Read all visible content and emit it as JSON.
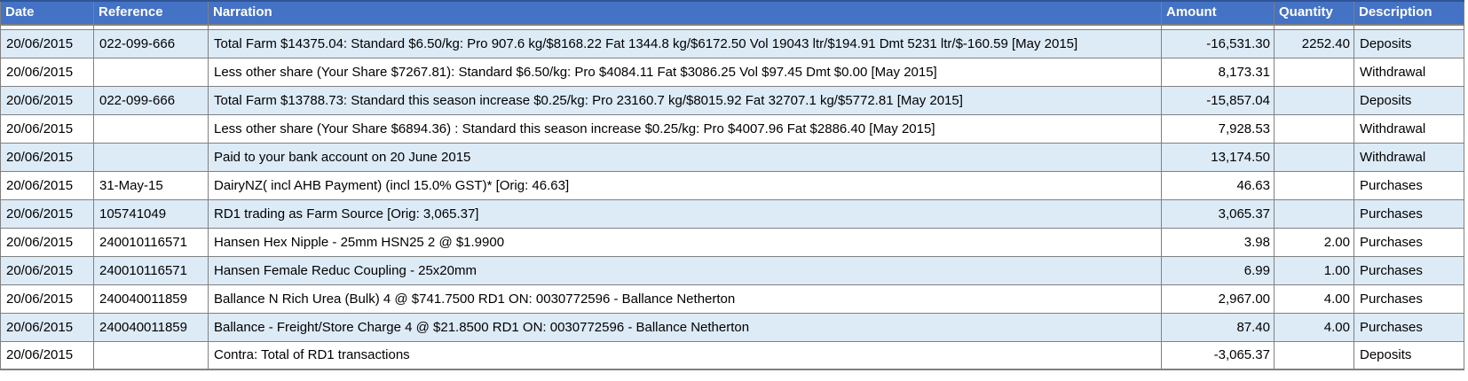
{
  "colors": {
    "header_bg": "#4472C4",
    "header_text": "#FFFFFF",
    "row_band_bg": "#DDEBF7",
    "row_bg": "#FFFFFF",
    "grid_border": "#808080"
  },
  "table": {
    "columns": [
      {
        "key": "date",
        "label": "Date"
      },
      {
        "key": "reference",
        "label": "Reference"
      },
      {
        "key": "narration",
        "label": "Narration"
      },
      {
        "key": "amount",
        "label": "Amount"
      },
      {
        "key": "quantity",
        "label": "Quantity"
      },
      {
        "key": "description",
        "label": "Description"
      }
    ],
    "rows": [
      {
        "date": "20/06/2015",
        "reference": "022-099-666",
        "narration": "Total Farm $14375.04: Standard  $6.50/kg: Pro 907.6 kg/$8168.22 Fat 1344.8 kg/$6172.50 Vol 19043 ltr/$194.91 Dmt 5231 ltr/$-160.59 [May 2015]",
        "amount": "-16,531.30",
        "quantity": "2252.40",
        "description": "Deposits"
      },
      {
        "date": "20/06/2015",
        "reference": "",
        "narration": "Less other share (Your Share $7267.81): Standard  $6.50/kg: Pro $4084.11 Fat $3086.25 Vol $97.45 Dmt $0.00 [May 2015]",
        "amount": "8,173.31",
        "quantity": "",
        "description": "Withdrawal"
      },
      {
        "date": "20/06/2015",
        "reference": "022-099-666",
        "narration": "Total Farm $13788.73: Standard  this season increase $0.25/kg: Pro 23160.7 kg/$8015.92 Fat 32707.1 kg/$5772.81 [May 2015]",
        "amount": "-15,857.04",
        "quantity": "",
        "description": "Deposits"
      },
      {
        "date": "20/06/2015",
        "reference": "",
        "narration": "Less other share (Your Share $6894.36) : Standard  this season increase $0.25/kg: Pro $4007.96 Fat $2886.40 [May 2015]",
        "amount": "7,928.53",
        "quantity": "",
        "description": "Withdrawal"
      },
      {
        "date": "20/06/2015",
        "reference": "",
        "narration": "Paid to your bank account on 20 June 2015",
        "amount": "13,174.50",
        "quantity": "",
        "description": "Withdrawal"
      },
      {
        "date": "20/06/2015",
        "reference": "31-May-15",
        "narration": "DairyNZ( incl AHB Payment) (incl 15.0% GST)* [Orig: 46.63]",
        "amount": "46.63",
        "quantity": "",
        "description": "Purchases"
      },
      {
        "date": "20/06/2015",
        "reference": "105741049",
        "narration": "RD1 trading as Farm Source [Orig: 3,065.37]",
        "amount": "3,065.37",
        "quantity": "",
        "description": "Purchases"
      },
      {
        "date": "20/06/2015",
        "reference": "240010116571",
        "narration": "Hansen Hex Nipple - 25mm HSN25 2 @ $1.9900",
        "amount": "3.98",
        "quantity": "2.00",
        "description": "Purchases"
      },
      {
        "date": "20/06/2015",
        "reference": "240010116571",
        "narration": "Hansen Female Reduc Coupling - 25x20mm",
        "amount": "6.99",
        "quantity": "1.00",
        "description": "Purchases"
      },
      {
        "date": "20/06/2015",
        "reference": "240040011859",
        "narration": "Ballance N Rich Urea (Bulk) 4 @ $741.7500 RD1 ON: 0030772596 - Ballance Netherton",
        "amount": "2,967.00",
        "quantity": "4.00",
        "description": "Purchases"
      },
      {
        "date": "20/06/2015",
        "reference": "240040011859",
        "narration": "Ballance - Freight/Store Charge 4 @ $21.8500 RD1 ON: 0030772596 - Ballance Netherton",
        "amount": "87.40",
        "quantity": "4.00",
        "description": "Purchases"
      },
      {
        "date": "20/06/2015",
        "reference": "",
        "narration": "Contra: Total of RD1 transactions",
        "amount": "-3,065.37",
        "quantity": "",
        "description": "Deposits"
      }
    ]
  }
}
